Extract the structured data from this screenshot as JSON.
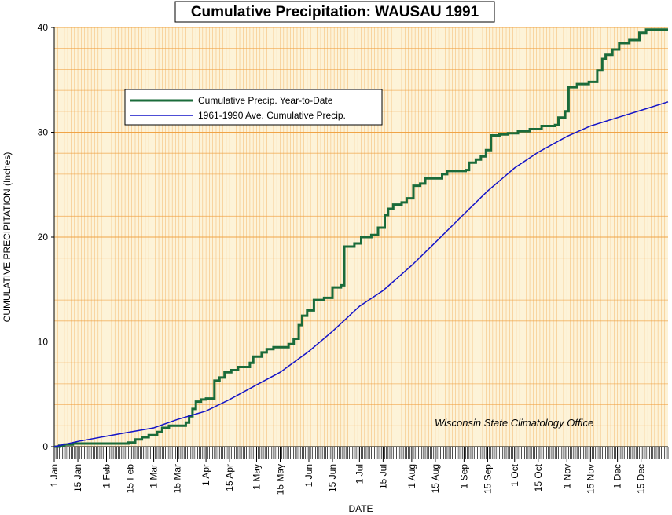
{
  "chart_data": {
    "type": "line",
    "title": "Cumulative Precipitation: WAUSAU 1991",
    "xlabel": "DATE",
    "ylabel": "CUMULATIVE PRECIPITATION (Inches)",
    "ylim": [
      0,
      40
    ],
    "y_ticks": [
      "0",
      "10",
      "20",
      "30",
      "40"
    ],
    "x_tick_labels": [
      "1 Jan",
      "15 Jan",
      "1 Feb",
      "15 Feb",
      "1 Mar",
      "15 Mar",
      "1 Apr",
      "15 Apr",
      "1 May",
      "15 May",
      "1 Jun",
      "15 Jun",
      "1 Jul",
      "15 Jul",
      "1 Aug",
      "15 Aug",
      "1 Sep",
      "15 Sep",
      "1 Oct",
      "15 Oct",
      "1 Nov",
      "15 Nov",
      "1 Dec",
      "15 Dec"
    ],
    "x_tick_dates": [
      "1991-01-01",
      "1991-01-15",
      "1991-02-01",
      "1991-02-15",
      "1991-03-01",
      "1991-03-15",
      "1991-04-01",
      "1991-04-15",
      "1991-05-01",
      "1991-05-15",
      "1991-06-01",
      "1991-06-15",
      "1991-07-01",
      "1991-07-15",
      "1991-08-01",
      "1991-08-15",
      "1991-09-01",
      "1991-09-15",
      "1991-10-01",
      "1991-10-15",
      "1991-11-01",
      "1991-11-15",
      "1991-12-01",
      "1991-12-15"
    ],
    "xlim": [
      "1991-01-01",
      "1991-12-31"
    ],
    "grid": true,
    "legend_position": "upper-left",
    "annotation": "Wisconsin State Climatology Office",
    "colors": {
      "plot_background": "#fdf3d8",
      "grid": "#f0a040",
      "actual": "#1a6b3a",
      "average": "#1414c8"
    },
    "series": [
      {
        "name": "Cumulative Precip. Year-to-Date",
        "kind": "step",
        "points": [
          [
            "1991-01-01",
            0.0
          ],
          [
            "1991-01-04",
            0.1
          ],
          [
            "1991-01-07",
            0.2
          ],
          [
            "1991-01-12",
            0.3
          ],
          [
            "1991-02-14",
            0.4
          ],
          [
            "1991-02-18",
            0.7
          ],
          [
            "1991-02-22",
            0.9
          ],
          [
            "1991-02-26",
            1.1
          ],
          [
            "1991-03-03",
            1.4
          ],
          [
            "1991-03-06",
            1.8
          ],
          [
            "1991-03-10",
            2.0
          ],
          [
            "1991-03-20",
            2.3
          ],
          [
            "1991-03-22",
            2.9
          ],
          [
            "1991-03-24",
            3.6
          ],
          [
            "1991-03-26",
            4.3
          ],
          [
            "1991-03-29",
            4.5
          ],
          [
            "1991-04-01",
            4.6
          ],
          [
            "1991-04-06",
            6.3
          ],
          [
            "1991-04-09",
            6.6
          ],
          [
            "1991-04-12",
            7.1
          ],
          [
            "1991-04-16",
            7.3
          ],
          [
            "1991-04-20",
            7.6
          ],
          [
            "1991-04-27",
            8.0
          ],
          [
            "1991-04-29",
            8.6
          ],
          [
            "1991-05-04",
            9.0
          ],
          [
            "1991-05-07",
            9.3
          ],
          [
            "1991-05-11",
            9.5
          ],
          [
            "1991-05-20",
            9.8
          ],
          [
            "1991-05-23",
            10.3
          ],
          [
            "1991-05-26",
            11.6
          ],
          [
            "1991-05-28",
            12.5
          ],
          [
            "1991-05-31",
            13.0
          ],
          [
            "1991-06-04",
            14.0
          ],
          [
            "1991-06-10",
            14.2
          ],
          [
            "1991-06-15",
            15.2
          ],
          [
            "1991-06-20",
            15.4
          ],
          [
            "1991-06-22",
            19.1
          ],
          [
            "1991-06-28",
            19.4
          ],
          [
            "1991-07-02",
            20.0
          ],
          [
            "1991-07-08",
            20.2
          ],
          [
            "1991-07-12",
            20.9
          ],
          [
            "1991-07-16",
            22.1
          ],
          [
            "1991-07-18",
            22.7
          ],
          [
            "1991-07-21",
            23.1
          ],
          [
            "1991-07-26",
            23.3
          ],
          [
            "1991-07-29",
            23.7
          ],
          [
            "1991-08-02",
            24.9
          ],
          [
            "1991-08-06",
            25.1
          ],
          [
            "1991-08-09",
            25.6
          ],
          [
            "1991-08-19",
            26.0
          ],
          [
            "1991-08-22",
            26.3
          ],
          [
            "1991-09-02",
            26.4
          ],
          [
            "1991-09-04",
            27.1
          ],
          [
            "1991-09-08",
            27.4
          ],
          [
            "1991-09-11",
            27.7
          ],
          [
            "1991-09-14",
            28.3
          ],
          [
            "1991-09-17",
            29.7
          ],
          [
            "1991-09-22",
            29.8
          ],
          [
            "1991-09-27",
            29.9
          ],
          [
            "1991-10-03",
            30.1
          ],
          [
            "1991-10-10",
            30.3
          ],
          [
            "1991-10-17",
            30.6
          ],
          [
            "1991-10-25",
            30.7
          ],
          [
            "1991-10-27",
            31.4
          ],
          [
            "1991-10-31",
            32.0
          ],
          [
            "1991-11-02",
            34.3
          ],
          [
            "1991-11-07",
            34.6
          ],
          [
            "1991-11-14",
            34.8
          ],
          [
            "1991-11-19",
            35.9
          ],
          [
            "1991-11-22",
            37.0
          ],
          [
            "1991-11-24",
            37.4
          ],
          [
            "1991-11-28",
            37.9
          ],
          [
            "1991-12-02",
            38.5
          ],
          [
            "1991-12-08",
            38.8
          ],
          [
            "1991-12-14",
            39.5
          ],
          [
            "1991-12-18",
            39.8
          ],
          [
            "1991-12-31",
            39.8
          ]
        ]
      },
      {
        "name": "1961-1990 Ave. Cumulative Precip.",
        "kind": "line",
        "points": [
          [
            "1991-01-01",
            0.0
          ],
          [
            "1991-01-15",
            0.5
          ],
          [
            "1991-02-01",
            1.0
          ],
          [
            "1991-02-15",
            1.4
          ],
          [
            "1991-03-01",
            1.8
          ],
          [
            "1991-03-15",
            2.6
          ],
          [
            "1991-04-01",
            3.4
          ],
          [
            "1991-04-15",
            4.5
          ],
          [
            "1991-05-01",
            5.9
          ],
          [
            "1991-05-15",
            7.1
          ],
          [
            "1991-06-01",
            9.1
          ],
          [
            "1991-06-15",
            11.0
          ],
          [
            "1991-07-01",
            13.4
          ],
          [
            "1991-07-15",
            14.9
          ],
          [
            "1991-08-01",
            17.3
          ],
          [
            "1991-08-15",
            19.5
          ],
          [
            "1991-09-01",
            22.2
          ],
          [
            "1991-09-15",
            24.4
          ],
          [
            "1991-10-01",
            26.6
          ],
          [
            "1991-10-15",
            28.1
          ],
          [
            "1991-11-01",
            29.6
          ],
          [
            "1991-11-15",
            30.6
          ],
          [
            "1991-12-01",
            31.4
          ],
          [
            "1991-12-15",
            32.1
          ],
          [
            "1991-12-31",
            32.9
          ]
        ]
      }
    ]
  }
}
